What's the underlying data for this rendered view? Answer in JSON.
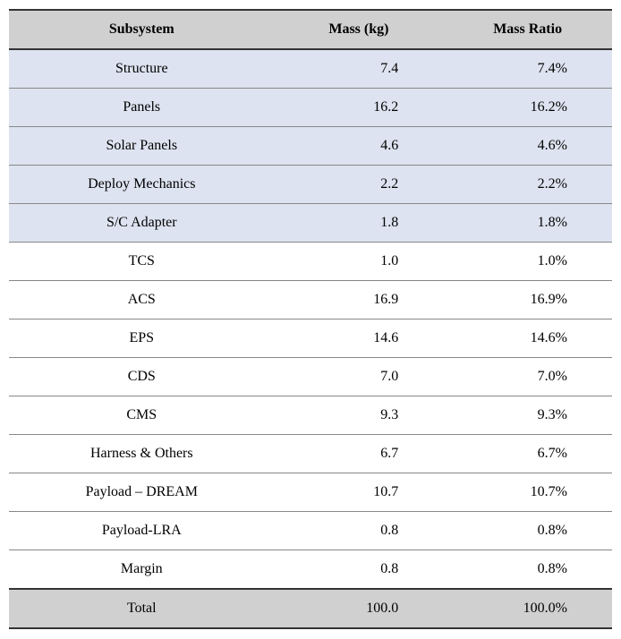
{
  "table": {
    "type": "table",
    "columns": [
      {
        "key": "subsystem",
        "label": "Subsystem"
      },
      {
        "key": "mass",
        "label": "Mass (kg)"
      },
      {
        "key": "ratio",
        "label": "Mass Ratio"
      }
    ],
    "rows": [
      {
        "subsystem": "Structure",
        "mass": "7.4",
        "ratio": "7.4%",
        "highlighted": true
      },
      {
        "subsystem": "Panels",
        "mass": "16.2",
        "ratio": "16.2%",
        "highlighted": true
      },
      {
        "subsystem": "Solar Panels",
        "mass": "4.6",
        "ratio": "4.6%",
        "highlighted": true
      },
      {
        "subsystem": "Deploy Mechanics",
        "mass": "2.2",
        "ratio": "2.2%",
        "highlighted": true
      },
      {
        "subsystem": "S/C Adapter",
        "mass": "1.8",
        "ratio": "1.8%",
        "highlighted": true
      },
      {
        "subsystem": "TCS",
        "mass": "1.0",
        "ratio": "1.0%",
        "highlighted": false
      },
      {
        "subsystem": "ACS",
        "mass": "16.9",
        "ratio": "16.9%",
        "highlighted": false
      },
      {
        "subsystem": "EPS",
        "mass": "14.6",
        "ratio": "14.6%",
        "highlighted": false
      },
      {
        "subsystem": "CDS",
        "mass": "7.0",
        "ratio": "7.0%",
        "highlighted": false
      },
      {
        "subsystem": "CMS",
        "mass": "9.3",
        "ratio": "9.3%",
        "highlighted": false
      },
      {
        "subsystem": "Harness & Others",
        "mass": "6.7",
        "ratio": "6.7%",
        "highlighted": false
      },
      {
        "subsystem": "Payload – DREAM",
        "mass": "10.7",
        "ratio": "10.7%",
        "highlighted": false
      },
      {
        "subsystem": "Payload-LRA",
        "mass": "0.8",
        "ratio": "0.8%",
        "highlighted": false
      },
      {
        "subsystem": "Margin",
        "mass": "0.8",
        "ratio": "0.8%",
        "highlighted": false
      }
    ],
    "footer": {
      "subsystem": "Total",
      "mass": "100.0",
      "ratio": "100.0%"
    },
    "colors": {
      "header_bg": "#d0d0d0",
      "highlight_bg": "#dde3f0",
      "white_bg": "#ffffff",
      "footer_bg": "#d0d0d0",
      "border_top": "#333333",
      "row_border": "#888888",
      "text": "#000000"
    },
    "border_widths": {
      "outer": 2,
      "inner": 1
    }
  }
}
